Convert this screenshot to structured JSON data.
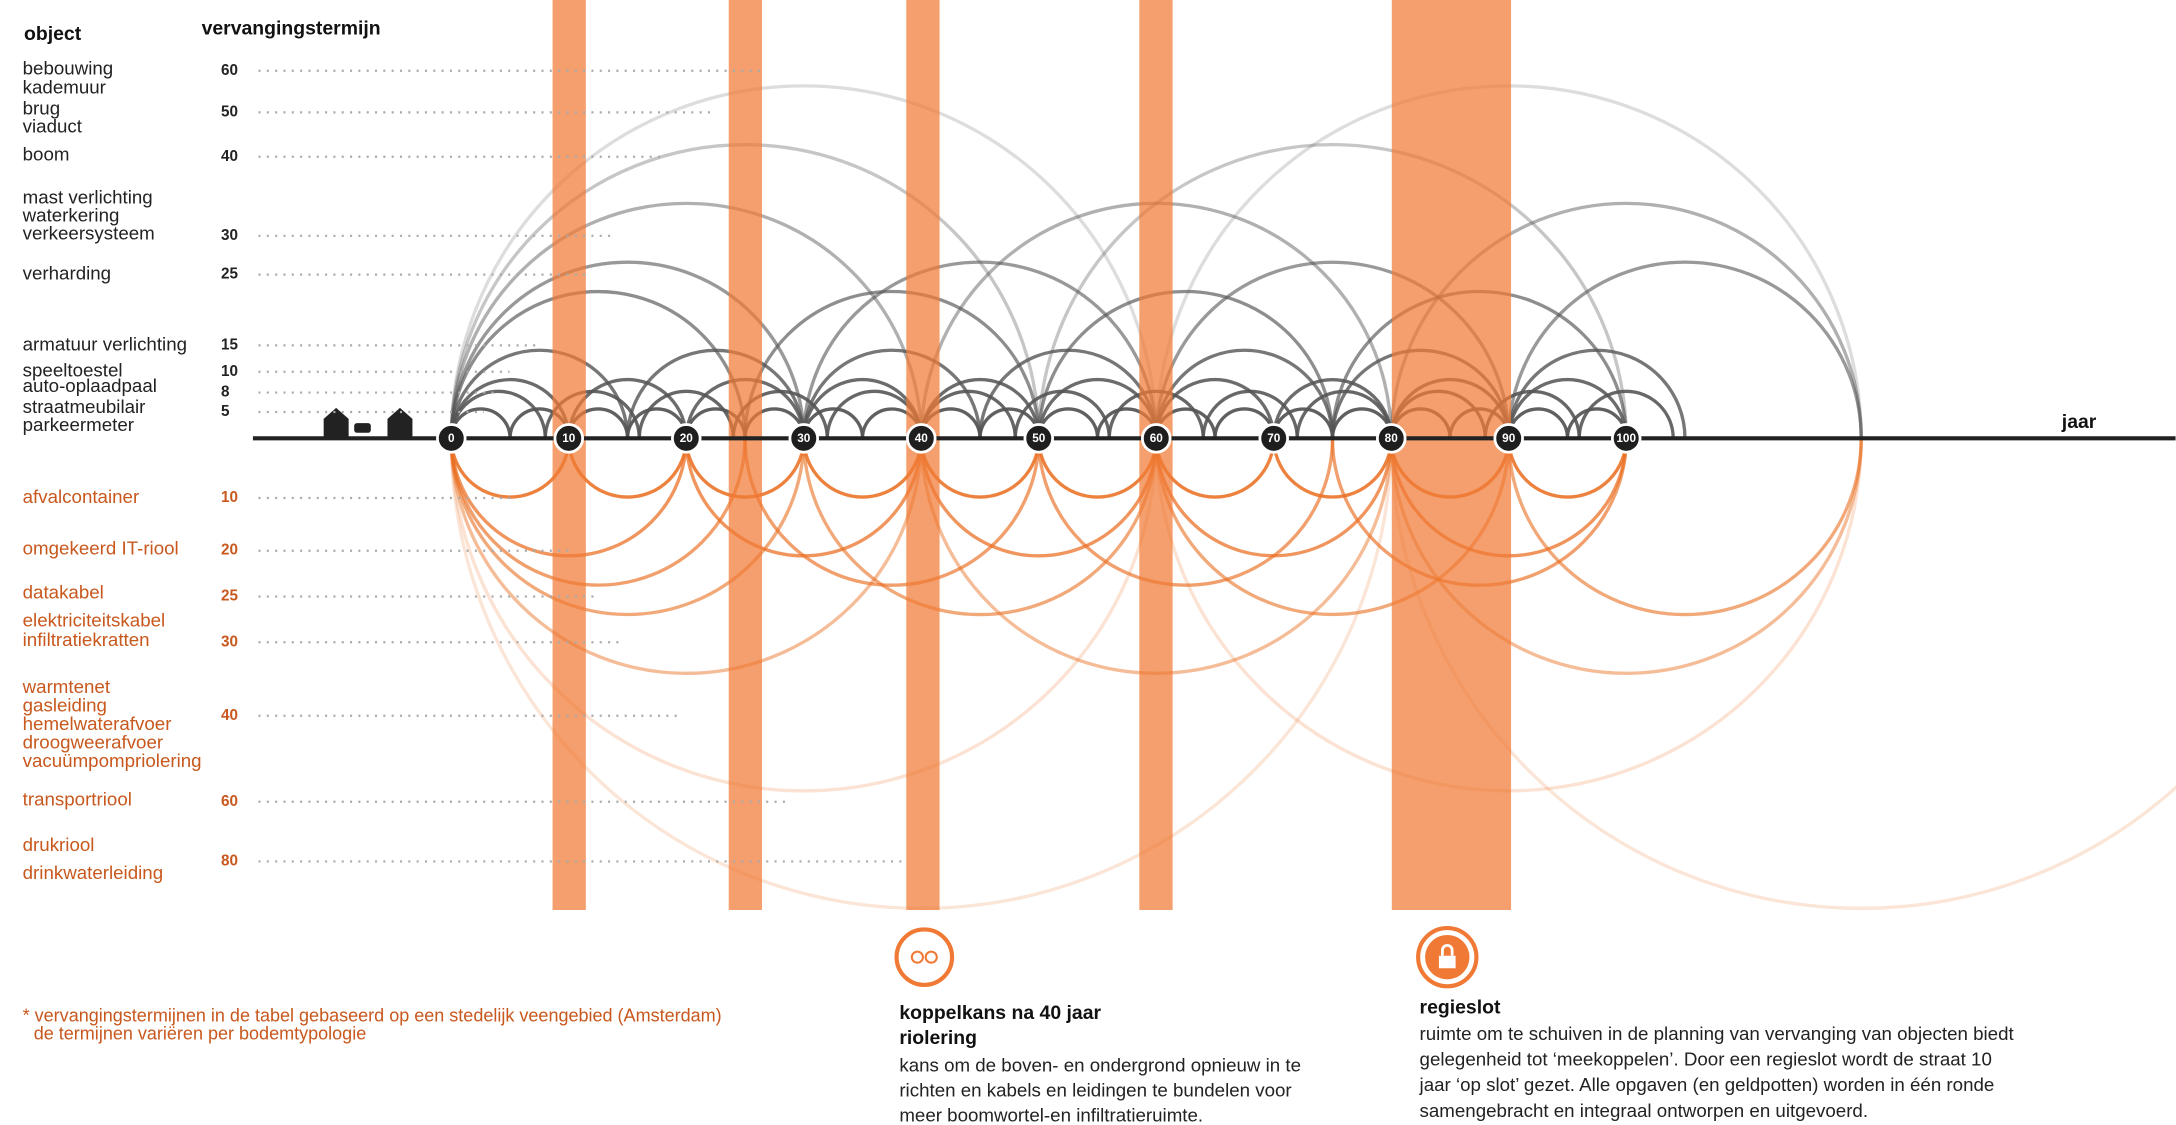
{
  "header": {
    "object": "object",
    "term": "vervangingstermijn"
  },
  "above_ground": [
    {
      "labels": [
        "bebouwing",
        "kademuur"
      ],
      "term": 60
    },
    {
      "labels": [
        "brug",
        "viaduct"
      ],
      "term": 50
    },
    {
      "labels": [
        "boom"
      ],
      "term": 40
    },
    {
      "labels": [
        "mast verlichting",
        "waterkering",
        "verkeersysteem"
      ],
      "term": 30
    },
    {
      "labels": [
        "verharding"
      ],
      "term": 25
    },
    {
      "labels": [
        "armatuur verlichting"
      ],
      "term": 15
    },
    {
      "labels": [
        "speeltoestel"
      ],
      "term": 10
    },
    {
      "labels": [
        "auto-oplaadpaal"
      ],
      "term": 8
    },
    {
      "labels": [
        "straatmeubilair",
        "parkeermeter"
      ],
      "term": 5
    }
  ],
  "below_ground": [
    {
      "labels": [
        "afvalcontainer"
      ],
      "term": 10
    },
    {
      "labels": [
        "omgekeerd IT-riool"
      ],
      "term": 20
    },
    {
      "labels": [
        "datakabel"
      ],
      "term": 25
    },
    {
      "labels": [
        "elektriciteitskabel",
        "infiltratiekratten"
      ],
      "term": 30
    },
    {
      "labels": [
        "warmtenet",
        "gasleiding",
        "hemelwaterafvoer",
        "droogweerafvoer",
        "vacuümpompriolering"
      ],
      "term": 40
    },
    {
      "labels": [
        "transportriool"
      ],
      "term": 60
    },
    {
      "labels": [
        "drukriool",
        "drinkwaterleiding"
      ],
      "term": 80
    }
  ],
  "axis": {
    "label": "jaar",
    "ticks": [
      0,
      10,
      20,
      30,
      40,
      50,
      60,
      70,
      80,
      90,
      100
    ]
  },
  "footnote": [
    "* vervangingstermijnen in de tabel gebaseerd op een stedelijk veengebied (Amsterdam)",
    "de termijnen variëren per  bodemtypologie"
  ],
  "annotations": [
    {
      "title": [
        "koppelkans na 40 jaar",
        "riolering"
      ],
      "body": [
        "kans om de boven- en ondergrond opnieuw in te",
        "richten en kabels en leidingen te bundelen voor",
        "meer boomwortel-en infiltratieruimte."
      ]
    },
    {
      "title": [
        "regieslot"
      ],
      "body": [
        "ruimte om te schuiven in de planning van vervanging van objecten biedt",
        "gelegenheid tot ‘meekoppelen’. Door een regieslot wordt de straat 10",
        "jaar ‘op slot’ gezet. Alle opgaven (en geldpotten) worden in één ronde",
        "samengebracht en integraal ontworpen en uitgevoerd."
      ]
    }
  ]
}
